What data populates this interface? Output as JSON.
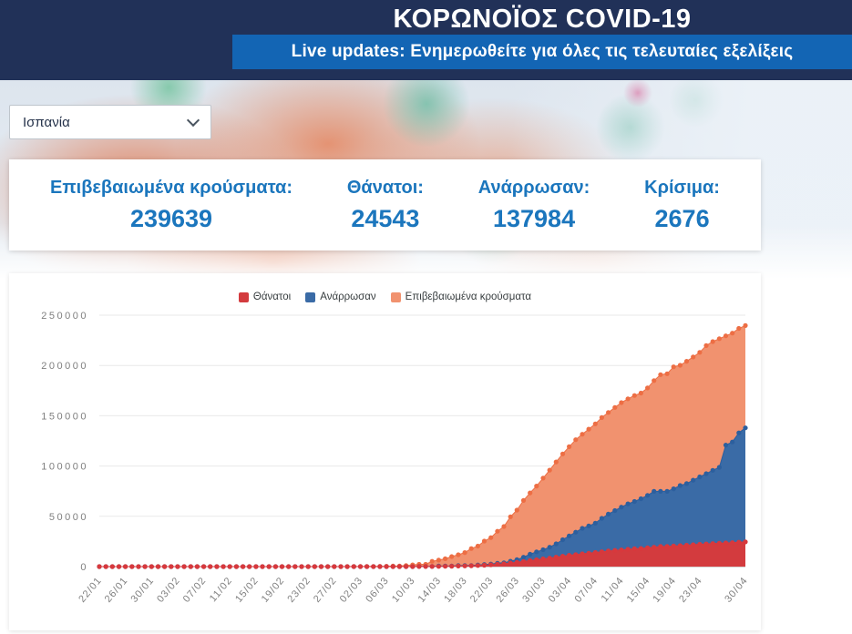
{
  "header": {
    "title": "ΚΟΡΩΝΟΪΟΣ COVID-19",
    "subtitle": "Live updates: Ενημερωθείτε για όλες τις τελευταίες εξελίξεις"
  },
  "country_select": {
    "value": "Ισπανία"
  },
  "stats": [
    {
      "label": "Επιβεβαιωμένα κρούσματα:",
      "value": "239639"
    },
    {
      "label": "Θάνατοι:",
      "value": "24543"
    },
    {
      "label": "Ανάρρωσαν:",
      "value": "137984"
    },
    {
      "label": "Κρίσιμα:",
      "value": "2676"
    }
  ],
  "colors": {
    "header_bg": "#213158",
    "live_bar_bg": "#1365b4",
    "stats_text": "#1b76bd",
    "deaths_red": "#d8383c",
    "recovered_blue": "#2c5f9e",
    "confirmed_coral": "#ed6e44"
  },
  "chart_data": {
    "type": "area",
    "title": "",
    "xlabel": "",
    "ylabel": "",
    "grid": true,
    "legend_position": "top",
    "marker": "circle",
    "ylim": [
      0,
      250000
    ],
    "yticks": [
      0,
      50000,
      100000,
      150000,
      200000,
      250000
    ],
    "x": [
      "22/01",
      "23/01",
      "24/01",
      "25/01",
      "26/01",
      "27/01",
      "28/01",
      "29/01",
      "30/01",
      "31/01",
      "01/02",
      "02/02",
      "03/02",
      "04/02",
      "05/02",
      "06/02",
      "07/02",
      "08/02",
      "09/02",
      "10/02",
      "11/02",
      "12/02",
      "13/02",
      "14/02",
      "15/02",
      "16/02",
      "17/02",
      "18/02",
      "19/02",
      "20/02",
      "21/02",
      "22/02",
      "23/02",
      "24/02",
      "25/02",
      "26/02",
      "27/02",
      "28/02",
      "29/02",
      "01/03",
      "02/03",
      "03/03",
      "04/03",
      "05/03",
      "06/03",
      "07/03",
      "08/03",
      "09/03",
      "10/03",
      "11/03",
      "12/03",
      "13/03",
      "14/03",
      "15/03",
      "16/03",
      "17/03",
      "18/03",
      "19/03",
      "20/03",
      "21/03",
      "22/03",
      "23/03",
      "24/03",
      "25/03",
      "26/03",
      "27/03",
      "28/03",
      "29/03",
      "30/03",
      "31/03",
      "01/04",
      "02/04",
      "03/04",
      "04/04",
      "05/04",
      "06/04",
      "07/04",
      "08/04",
      "09/04",
      "10/04",
      "11/04",
      "12/04",
      "13/04",
      "14/04",
      "15/04",
      "16/04",
      "17/04",
      "18/04",
      "19/04",
      "20/04",
      "21/04",
      "22/04",
      "23/04",
      "24/04",
      "25/04",
      "26/04",
      "27/04",
      "28/04",
      "29/04",
      "30/04"
    ],
    "xtick_indices": [
      0,
      4,
      8,
      12,
      16,
      20,
      24,
      28,
      32,
      36,
      40,
      44,
      48,
      52,
      56,
      60,
      64,
      68,
      72,
      76,
      80,
      84,
      88,
      92,
      99
    ],
    "series": [
      {
        "key": "deaths",
        "name": "Θάνατοι",
        "color": "#d8383c",
        "fill": "#d33b3e",
        "values": [
          0,
          0,
          0,
          0,
          0,
          0,
          0,
          0,
          0,
          0,
          0,
          0,
          0,
          0,
          0,
          0,
          0,
          0,
          0,
          0,
          0,
          0,
          0,
          0,
          0,
          0,
          0,
          0,
          0,
          0,
          0,
          0,
          0,
          0,
          0,
          0,
          0,
          0,
          0,
          0,
          0,
          1,
          2,
          3,
          5,
          10,
          17,
          28,
          35,
          54,
          55,
          133,
          195,
          289,
          342,
          533,
          623,
          830,
          1043,
          1375,
          1772,
          2311,
          2808,
          3647,
          4365,
          5138,
          5982,
          6803,
          7716,
          8464,
          9387,
          10348,
          11198,
          11947,
          12641,
          13341,
          14045,
          14792,
          15447,
          16081,
          16606,
          17209,
          17756,
          18056,
          18708,
          19315,
          20002,
          20043,
          20453,
          20852,
          21282,
          21717,
          22157,
          22524,
          22902,
          23190,
          23521,
          23822,
          24275,
          24543
        ]
      },
      {
        "key": "recovered",
        "name": "Ανάρρωσαν",
        "color": "#2c5f9e",
        "fill": "#3a6ba6",
        "values": [
          0,
          0,
          0,
          0,
          0,
          0,
          0,
          0,
          0,
          0,
          0,
          0,
          0,
          0,
          0,
          0,
          0,
          0,
          0,
          0,
          0,
          0,
          0,
          0,
          1,
          1,
          1,
          1,
          1,
          1,
          1,
          1,
          2,
          2,
          2,
          2,
          2,
          2,
          2,
          2,
          2,
          2,
          2,
          2,
          2,
          30,
          30,
          32,
          32,
          183,
          183,
          193,
          517,
          517,
          530,
          1028,
          1081,
          1107,
          1588,
          2125,
          2575,
          3355,
          3794,
          5367,
          7015,
          9357,
          12285,
          14709,
          16780,
          19259,
          22647,
          26743,
          30513,
          34219,
          38080,
          40437,
          43208,
          48021,
          52165,
          55668,
          59109,
          62391,
          64727,
          67504,
          70853,
          74797,
          74797,
          74797,
          77357,
          80587,
          82514,
          85915,
          89250,
          92355,
          95708,
          98732,
          120832,
          123903,
          132929,
          137984
        ]
      },
      {
        "key": "confirmed",
        "name": "Επιβεβαιωμένα κρούσματα",
        "color": "#ed6e44",
        "fill": "#f1926f",
        "values": [
          0,
          0,
          0,
          0,
          0,
          0,
          0,
          0,
          0,
          0,
          1,
          1,
          1,
          1,
          1,
          1,
          1,
          1,
          2,
          2,
          2,
          2,
          2,
          2,
          2,
          2,
          2,
          2,
          2,
          2,
          2,
          2,
          2,
          2,
          6,
          13,
          15,
          32,
          45,
          84,
          120,
          165,
          222,
          259,
          400,
          500,
          673,
          1073,
          1695,
          2277,
          2277,
          5232,
          6391,
          7798,
          9942,
          11748,
          13910,
          17963,
          20410,
          25374,
          28768,
          35136,
          39885,
          49515,
          56197,
          65719,
          73235,
          80110,
          87956,
          95923,
          104118,
          112065,
          119199,
          126168,
          131646,
          136675,
          141942,
          148220,
          153222,
          158273,
          163027,
          166831,
          170099,
          172541,
          177644,
          184948,
          190839,
          191726,
          198674,
          200210,
          204178,
          208389,
          213024,
          219764,
          223759,
          226629,
          229422,
          232128,
          236899,
          239639
        ]
      }
    ]
  }
}
